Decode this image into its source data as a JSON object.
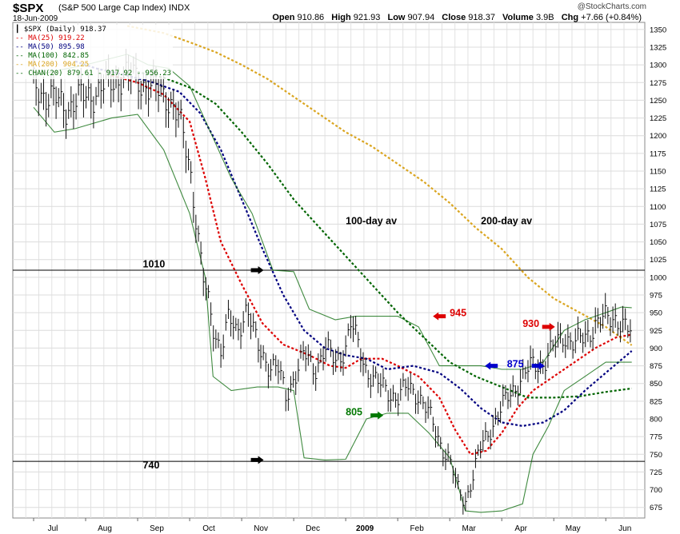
{
  "header": {
    "symbol": "$SPX",
    "description": "(S&P 500 Large Cap Index) INDX",
    "date": "18-Jun-2009",
    "site": "@StockCharts.com",
    "open_label": "Open",
    "open": "910.86",
    "high_label": "High",
    "high": "921.93",
    "low_label": "Low",
    "low": "907.94",
    "close_label": "Close",
    "close": "918.37",
    "volume_label": "Volume",
    "volume": "3.9B",
    "chg_label": "Chg",
    "chg": "+7.66 (+0.84%)"
  },
  "legend": [
    {
      "text": "$SPX (Daily) 918.37",
      "color": "#000000"
    },
    {
      "text": "MA(25) 919.22",
      "color": "#dd0000"
    },
    {
      "text": "MA(50) 895.98",
      "color": "#000080"
    },
    {
      "text": "MA(100) 842.85",
      "color": "#006400"
    },
    {
      "text": "MA(200) 904.25",
      "color": "#daa520"
    },
    {
      "text": "CHAN(20) 879.61 - 917.92 - 956.23",
      "color": "#006400"
    }
  ],
  "chart_data": {
    "type": "line",
    "title": "$SPX",
    "x_ticks": [
      "Jul",
      "Aug",
      "Sep",
      "Oct",
      "Nov",
      "Dec",
      "2009",
      "Feb",
      "Mar",
      "Apr",
      "May",
      "Jun"
    ],
    "ylim": [
      660,
      1360
    ],
    "y_ticks": [
      675,
      700,
      725,
      750,
      775,
      800,
      825,
      850,
      875,
      900,
      925,
      950,
      975,
      1000,
      1025,
      1050,
      1075,
      1100,
      1125,
      1150,
      1175,
      1200,
      1225,
      1250,
      1275,
      1300,
      1325,
      1350
    ],
    "grid": true,
    "price": [
      [
        0,
        1270
      ],
      [
        0.3,
        1255
      ],
      [
        0.6,
        1240
      ],
      [
        1.0,
        1255
      ],
      [
        1.4,
        1270
      ],
      [
        1.7,
        1285
      ],
      [
        2.0,
        1280
      ],
      [
        2.3,
        1265
      ],
      [
        2.6,
        1255
      ],
      [
        2.8,
        1220
      ],
      [
        3.0,
        1160
      ],
      [
        3.1,
        1100
      ],
      [
        3.25,
        1000
      ],
      [
        3.45,
        930
      ],
      [
        3.6,
        900
      ],
      [
        3.75,
        940
      ],
      [
        3.9,
        920
      ],
      [
        4.1,
        960
      ],
      [
        4.3,
        900
      ],
      [
        4.5,
        880
      ],
      [
        4.7,
        870
      ],
      [
        4.85,
        830
      ],
      [
        5.0,
        860
      ],
      [
        5.2,
        890
      ],
      [
        5.4,
        870
      ],
      [
        5.6,
        900
      ],
      [
        5.8,
        880
      ],
      [
        6.0,
        903
      ],
      [
        6.1,
        935
      ],
      [
        6.25,
        900
      ],
      [
        6.4,
        870
      ],
      [
        6.6,
        850
      ],
      [
        6.8,
        840
      ],
      [
        7.0,
        830
      ],
      [
        7.2,
        845
      ],
      [
        7.4,
        835
      ],
      [
        7.6,
        805
      ],
      [
        7.8,
        770
      ],
      [
        8.0,
        740
      ],
      [
        8.15,
        700
      ],
      [
        8.3,
        685
      ],
      [
        8.45,
        720
      ],
      [
        8.6,
        760
      ],
      [
        8.8,
        790
      ],
      [
        9.0,
        815
      ],
      [
        9.2,
        840
      ],
      [
        9.4,
        860
      ],
      [
        9.6,
        875
      ],
      [
        9.8,
        880
      ],
      [
        10.0,
        900
      ],
      [
        10.2,
        920
      ],
      [
        10.4,
        905
      ],
      [
        10.6,
        915
      ],
      [
        10.8,
        935
      ],
      [
        11.0,
        940
      ],
      [
        11.2,
        945
      ],
      [
        11.35,
        930
      ],
      [
        11.5,
        918
      ]
    ],
    "series": [
      {
        "name": "MA(25)",
        "color": "#dd0000",
        "values": [
          [
            1.5,
            1285
          ],
          [
            2.0,
            1275
          ],
          [
            2.5,
            1258
          ],
          [
            3.0,
            1220
          ],
          [
            3.3,
            1140
          ],
          [
            3.6,
            1050
          ],
          [
            4.0,
            990
          ],
          [
            4.4,
            935
          ],
          [
            4.8,
            905
          ],
          [
            5.3,
            890
          ],
          [
            5.7,
            875
          ],
          [
            6.0,
            872
          ],
          [
            6.3,
            885
          ],
          [
            6.7,
            885
          ],
          [
            7.0,
            875
          ],
          [
            7.4,
            860
          ],
          [
            7.8,
            830
          ],
          [
            8.1,
            785
          ],
          [
            8.4,
            750
          ],
          [
            8.7,
            755
          ],
          [
            9.0,
            780
          ],
          [
            9.3,
            815
          ],
          [
            9.6,
            840
          ],
          [
            10.0,
            860
          ],
          [
            10.4,
            880
          ],
          [
            10.8,
            900
          ],
          [
            11.2,
            915
          ],
          [
            11.5,
            919
          ]
        ]
      },
      {
        "name": "MA(50)",
        "color": "#000080",
        "values": [
          [
            0.8,
            1305
          ],
          [
            1.2,
            1295
          ],
          [
            1.8,
            1285
          ],
          [
            2.3,
            1275
          ],
          [
            2.8,
            1262
          ],
          [
            3.2,
            1232
          ],
          [
            3.6,
            1180
          ],
          [
            4.0,
            1110
          ],
          [
            4.4,
            1040
          ],
          [
            4.8,
            975
          ],
          [
            5.2,
            925
          ],
          [
            5.6,
            900
          ],
          [
            6.0,
            890
          ],
          [
            6.4,
            885
          ],
          [
            6.8,
            870
          ],
          [
            7.3,
            875
          ],
          [
            7.8,
            865
          ],
          [
            8.2,
            843
          ],
          [
            8.6,
            815
          ],
          [
            9.0,
            795
          ],
          [
            9.4,
            790
          ],
          [
            9.8,
            795
          ],
          [
            10.2,
            812
          ],
          [
            10.6,
            840
          ],
          [
            11.0,
            865
          ],
          [
            11.5,
            896
          ]
        ]
      },
      {
        "name": "MA(100)",
        "color": "#006400",
        "values": [
          [
            2.0,
            1290
          ],
          [
            2.5,
            1282
          ],
          [
            3.0,
            1268
          ],
          [
            3.5,
            1245
          ],
          [
            4.0,
            1205
          ],
          [
            4.5,
            1160
          ],
          [
            5.0,
            1110
          ],
          [
            5.5,
            1070
          ],
          [
            6.0,
            1030
          ],
          [
            6.5,
            990
          ],
          [
            7.0,
            950
          ],
          [
            7.5,
            915
          ],
          [
            8.0,
            880
          ],
          [
            8.5,
            860
          ],
          [
            9.0,
            845
          ],
          [
            9.5,
            830
          ],
          [
            10.0,
            830
          ],
          [
            10.5,
            832
          ],
          [
            11.0,
            838
          ],
          [
            11.5,
            843
          ]
        ]
      },
      {
        "name": "MA(200)",
        "color": "#daa520",
        "values": [
          [
            1.8,
            1355
          ],
          [
            2.5,
            1345
          ],
          [
            3.0,
            1332
          ],
          [
            3.5,
            1318
          ],
          [
            4.0,
            1300
          ],
          [
            4.5,
            1280
          ],
          [
            5.0,
            1255
          ],
          [
            5.5,
            1230
          ],
          [
            6.0,
            1205
          ],
          [
            6.5,
            1185
          ],
          [
            7.0,
            1160
          ],
          [
            7.5,
            1135
          ],
          [
            8.0,
            1105
          ],
          [
            8.5,
            1070
          ],
          [
            9.0,
            1040
          ],
          [
            9.5,
            1000
          ],
          [
            10.0,
            970
          ],
          [
            10.5,
            950
          ],
          [
            11.0,
            930
          ],
          [
            11.5,
            904
          ]
        ]
      },
      {
        "name": "CHAN(20) upper",
        "color": "#006400",
        "values": [
          [
            0,
            1285
          ],
          [
            1.0,
            1300
          ],
          [
            1.8,
            1315
          ],
          [
            2.2,
            1300
          ],
          [
            2.6,
            1295
          ],
          [
            3.0,
            1270
          ],
          [
            3.4,
            1205
          ],
          [
            3.8,
            1140
          ],
          [
            4.2,
            1090
          ],
          [
            4.6,
            1010
          ],
          [
            5.0,
            1008
          ],
          [
            5.3,
            955
          ],
          [
            5.8,
            940
          ],
          [
            6.2,
            945
          ],
          [
            6.6,
            945
          ],
          [
            7.0,
            945
          ],
          [
            7.4,
            930
          ],
          [
            7.8,
            875
          ],
          [
            8.2,
            875
          ],
          [
            8.6,
            875
          ],
          [
            9.0,
            870
          ],
          [
            9.4,
            870
          ],
          [
            9.8,
            880
          ],
          [
            10.2,
            925
          ],
          [
            10.6,
            940
          ],
          [
            11.0,
            950
          ],
          [
            11.3,
            958
          ],
          [
            11.5,
            957
          ]
        ]
      },
      {
        "name": "CHAN(20) lower",
        "color": "#006400",
        "values": [
          [
            0,
            1240
          ],
          [
            0.4,
            1205
          ],
          [
            0.8,
            1210
          ],
          [
            1.5,
            1225
          ],
          [
            2.0,
            1230
          ],
          [
            2.5,
            1180
          ],
          [
            3.0,
            1090
          ],
          [
            3.3,
            1000
          ],
          [
            3.45,
            860
          ],
          [
            3.8,
            840
          ],
          [
            4.3,
            845
          ],
          [
            4.7,
            845
          ],
          [
            5.0,
            840
          ],
          [
            5.2,
            745
          ],
          [
            5.6,
            742
          ],
          [
            6.0,
            743
          ],
          [
            6.4,
            800
          ],
          [
            6.8,
            808
          ],
          [
            7.2,
            808
          ],
          [
            7.6,
            780
          ],
          [
            8.0,
            745
          ],
          [
            8.3,
            670
          ],
          [
            8.6,
            668
          ],
          [
            9.0,
            670
          ],
          [
            9.4,
            680
          ],
          [
            9.6,
            750
          ],
          [
            9.9,
            790
          ],
          [
            10.2,
            840
          ],
          [
            10.6,
            860
          ],
          [
            11.0,
            880
          ],
          [
            11.5,
            880
          ]
        ]
      }
    ],
    "hlines": [
      1010,
      740
    ],
    "annotations": [
      {
        "text": "1010",
        "x": 2.1,
        "y": 1014,
        "color": "#000000"
      },
      {
        "text": "740",
        "x": 2.1,
        "y": 730,
        "color": "#000000"
      },
      {
        "text": "100-day av",
        "x": 6.0,
        "y": 1075,
        "color": "#000000"
      },
      {
        "text": "200-day av",
        "x": 8.6,
        "y": 1075,
        "color": "#000000"
      },
      {
        "text": "945",
        "x": 8.0,
        "y": 945,
        "color": "#dd0000"
      },
      {
        "text": "930",
        "x": 9.4,
        "y": 930,
        "color": "#dd0000"
      },
      {
        "text": "875",
        "x": 9.1,
        "y": 873,
        "color": "#0000cc"
      },
      {
        "text": "805",
        "x": 6.0,
        "y": 805,
        "color": "#007700"
      }
    ],
    "arrows": [
      {
        "dir": "right",
        "x": 4.3,
        "y": 1010,
        "color": "#000000"
      },
      {
        "dir": "right",
        "x": 4.3,
        "y": 742,
        "color": "#000000"
      },
      {
        "dir": "left",
        "x": 7.8,
        "y": 945,
        "color": "#dd0000"
      },
      {
        "dir": "right",
        "x": 9.9,
        "y": 930,
        "color": "#dd0000"
      },
      {
        "dir": "left",
        "x": 8.8,
        "y": 875,
        "color": "#0000cc"
      },
      {
        "dir": "right",
        "x": 9.7,
        "y": 875,
        "color": "#0000cc"
      },
      {
        "dir": "right",
        "x": 6.6,
        "y": 805,
        "color": "#007700"
      }
    ]
  }
}
